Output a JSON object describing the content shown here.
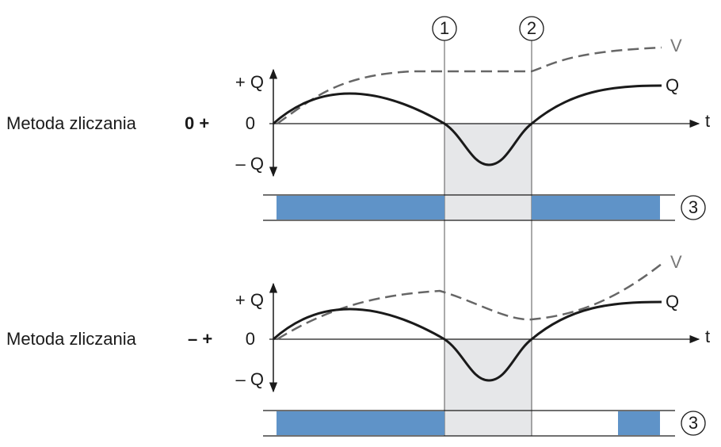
{
  "markers": [
    "1",
    "2"
  ],
  "panels": [
    {
      "label": "Metoda zliczania",
      "method": "0 +",
      "axis": {
        "plus": "+ Q",
        "zero": "0",
        "minus": "– Q",
        "t": "t"
      },
      "curves": {
        "v": "V",
        "q": "Q"
      },
      "bar_marker": "3"
    },
    {
      "label": "Metoda zliczania",
      "method": "– +",
      "axis": {
        "plus": "+ Q",
        "zero": "0",
        "minus": "– Q",
        "t": "t"
      },
      "curves": {
        "v": "V",
        "q": "Q"
      },
      "bar_marker": "3"
    }
  ]
}
